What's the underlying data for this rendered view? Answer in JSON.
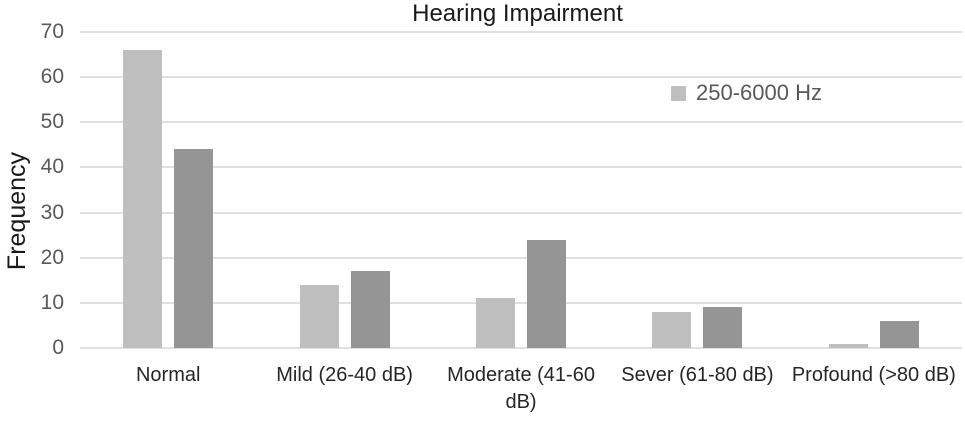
{
  "title": "Hearing Impairment",
  "ylabel": "Frequency",
  "legend": {
    "items": [
      {
        "label": "250-6000 Hz",
        "color": "#bfbfbf"
      }
    ]
  },
  "colors": {
    "series_light": "#bfbfbf",
    "series_dark": "#959595",
    "gridline": "#e0e0e0",
    "tick_text": "#595959",
    "category_text": "#262626",
    "title_text": "#1a1a1a",
    "background": "#ffffff"
  },
  "chart_data": {
    "type": "bar",
    "title": "Hearing Impairment",
    "xlabel": "",
    "ylabel": "Frequency",
    "categories": [
      "Normal",
      "Mild (26-40 dB)",
      "Moderate (41-60 dB)",
      "Sever (61-80 dB)",
      "Profound (>80 dB)"
    ],
    "series": [
      {
        "name": "250-6000 Hz",
        "color": "#bfbfbf",
        "values": [
          66,
          14,
          11,
          8,
          1
        ]
      },
      {
        "name": "",
        "color": "#959595",
        "values": [
          44,
          17,
          24,
          9,
          6
        ]
      }
    ],
    "ylim": [
      0,
      70
    ],
    "yticks": [
      0,
      10,
      20,
      30,
      40,
      50,
      60,
      70
    ],
    "grid": true,
    "legend_position": "upper-right-inside"
  }
}
